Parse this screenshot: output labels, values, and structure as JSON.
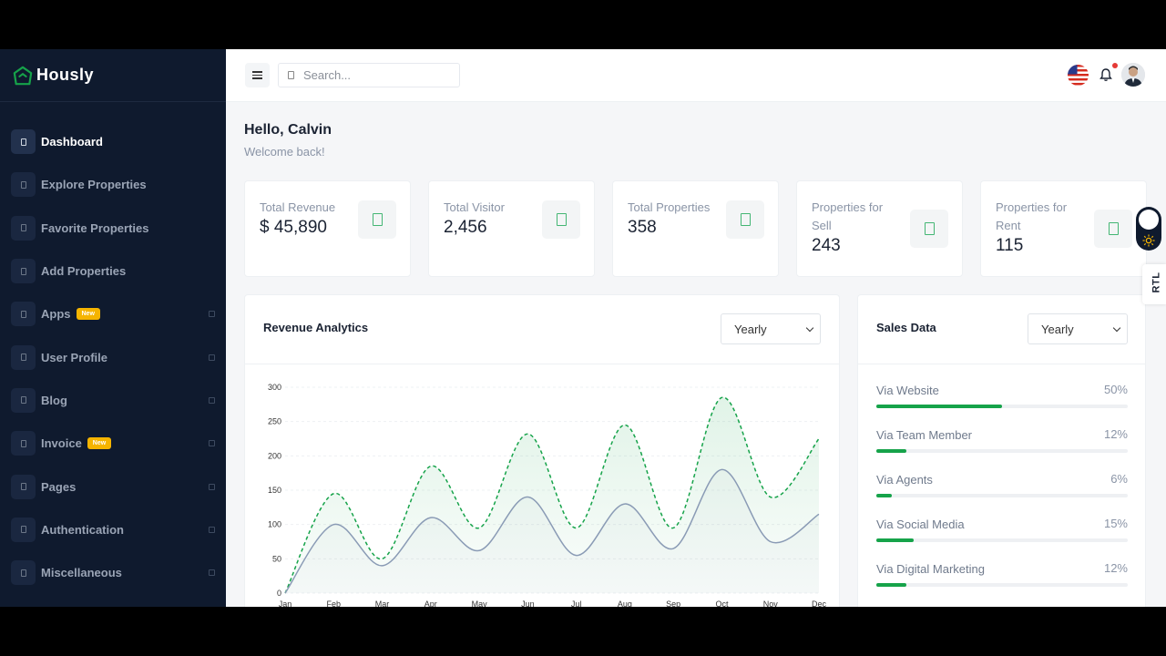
{
  "brand": {
    "name": "Hously"
  },
  "sidebar": {
    "items": [
      {
        "label": "Dashboard",
        "active": true,
        "badge": "",
        "expandable": false
      },
      {
        "label": "Explore Properties",
        "badge": "",
        "expandable": false
      },
      {
        "label": "Favorite Properties",
        "badge": "",
        "expandable": false
      },
      {
        "label": "Add Properties",
        "badge": "",
        "expandable": false
      },
      {
        "label": "Apps",
        "badge": "New",
        "expandable": true
      },
      {
        "label": "User Profile",
        "badge": "",
        "expandable": true
      },
      {
        "label": "Blog",
        "badge": "",
        "expandable": true
      },
      {
        "label": "Invoice",
        "badge": "New",
        "expandable": true
      },
      {
        "label": "Pages",
        "badge": "",
        "expandable": true
      },
      {
        "label": "Authentication",
        "badge": "",
        "expandable": true
      },
      {
        "label": "Miscellaneous",
        "badge": "",
        "expandable": true
      }
    ]
  },
  "topbar": {
    "search_placeholder": "Search..."
  },
  "greeting": {
    "title": "Hello, Calvin",
    "subtitle": "Welcome back!"
  },
  "stats": [
    {
      "label": "Total Revenue",
      "value": "$ 45,890"
    },
    {
      "label": "Total Visitor",
      "value": "2,456"
    },
    {
      "label": "Total Properties",
      "value": "358"
    },
    {
      "label": "Properties for Sell",
      "value": "243"
    },
    {
      "label": "Properties for Rent",
      "value": "115"
    }
  ],
  "revenue": {
    "title": "Revenue Analytics",
    "period": "Yearly"
  },
  "chart_data": {
    "type": "area",
    "categories": [
      "Jan",
      "Feb",
      "Mar",
      "Apr",
      "May",
      "Jun",
      "Jul",
      "Aug",
      "Sep",
      "Oct",
      "Nov",
      "Dec"
    ],
    "ylim": [
      0,
      300
    ],
    "yticks": [
      0,
      50,
      100,
      150,
      200,
      250,
      300
    ],
    "series": [
      {
        "values": [
          0,
          145,
          50,
          185,
          95,
          232,
          95,
          245,
          95,
          285,
          140,
          225
        ],
        "color": "#16a34a",
        "style": "dashed"
      },
      {
        "values": [
          0,
          100,
          40,
          110,
          62,
          140,
          55,
          130,
          65,
          180,
          75,
          115
        ],
        "color": "#8a9bb5",
        "style": "solid"
      }
    ],
    "grid": true,
    "title": "",
    "xlabel": "",
    "ylabel": ""
  },
  "sales": {
    "title": "Sales Data",
    "period": "Yearly",
    "items": [
      {
        "label": "Via Website",
        "percent": "50%",
        "value": 50
      },
      {
        "label": "Via Team Member",
        "percent": "12%",
        "value": 12
      },
      {
        "label": "Via Agents",
        "percent": "6%",
        "value": 6
      },
      {
        "label": "Via Social Media",
        "percent": "15%",
        "value": 15
      },
      {
        "label": "Via Digital Marketing",
        "percent": "12%",
        "value": 12
      }
    ]
  },
  "rtl": {
    "label": "RTL"
  },
  "colors": {
    "sidebar_bg": "#0f1a2e",
    "accent": "#16a34a",
    "badge": "#f5b400"
  }
}
